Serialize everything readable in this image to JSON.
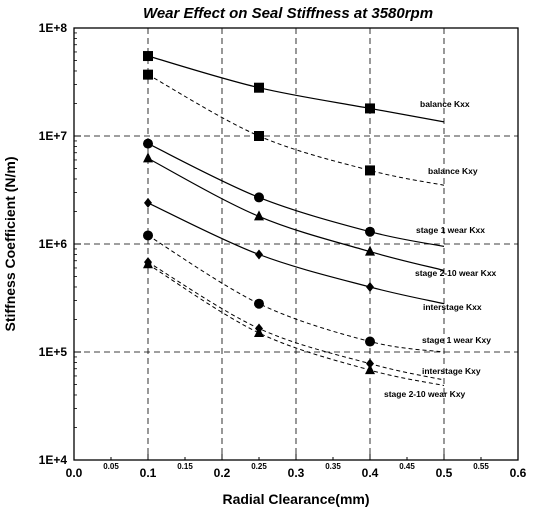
{
  "chart_data": {
    "type": "line",
    "title": "Wear Effect on Seal Stiffness at 3580rpm",
    "xlabel": "Radial Clearance(mm)",
    "ylabel": "Stiffness Coefficient (N/m)",
    "xlim": [
      0.0,
      0.6
    ],
    "ylim": [
      10000,
      100000000
    ],
    "yscale": "log",
    "grid": "dashed",
    "x_ticks": [
      {
        "value": 0.0,
        "label": "0.0",
        "major": true
      },
      {
        "value": 0.05,
        "label": "0.05",
        "major": false
      },
      {
        "value": 0.1,
        "label": "0.1",
        "major": true
      },
      {
        "value": 0.15,
        "label": "0.15",
        "major": false
      },
      {
        "value": 0.2,
        "label": "0.2",
        "major": true
      },
      {
        "value": 0.25,
        "label": "0.25",
        "major": false
      },
      {
        "value": 0.3,
        "label": "0.3",
        "major": true
      },
      {
        "value": 0.35,
        "label": "0.35",
        "major": false
      },
      {
        "value": 0.4,
        "label": "0.4",
        "major": true
      },
      {
        "value": 0.45,
        "label": "0.45",
        "major": false
      },
      {
        "value": 0.5,
        "label": "0.5",
        "major": true
      },
      {
        "value": 0.55,
        "label": "0.55",
        "major": false
      },
      {
        "value": 0.6,
        "label": "0.6",
        "major": true
      }
    ],
    "y_ticks": [
      {
        "value": 10000,
        "label": "1E+4"
      },
      {
        "value": 100000,
        "label": "1E+5"
      },
      {
        "value": 1000000,
        "label": "1E+6"
      },
      {
        "value": 10000000,
        "label": "1E+7"
      },
      {
        "value": 100000000,
        "label": "1E+8"
      }
    ],
    "series": [
      {
        "name": "balance Kxx",
        "marker": "square",
        "line": "solid",
        "points": [
          [
            0.1,
            55000000
          ],
          [
            0.25,
            28000000
          ],
          [
            0.4,
            18000000
          ]
        ],
        "curve": [
          [
            0.1,
            55000000
          ],
          [
            0.25,
            28000000
          ],
          [
            0.4,
            18000000
          ],
          [
            0.5,
            13500000
          ]
        ]
      },
      {
        "name": "balance Kxy",
        "marker": "square",
        "line": "dashed",
        "points": [
          [
            0.1,
            37000000
          ],
          [
            0.25,
            10000000
          ],
          [
            0.4,
            4800000
          ]
        ],
        "curve": [
          [
            0.1,
            37000000
          ],
          [
            0.25,
            10000000
          ],
          [
            0.4,
            4800000
          ],
          [
            0.5,
            3500000
          ]
        ]
      },
      {
        "name": "stage 1 wear Kxx",
        "marker": "circle",
        "line": "solid",
        "points": [
          [
            0.1,
            8500000
          ],
          [
            0.25,
            2700000
          ],
          [
            0.4,
            1300000
          ]
        ],
        "curve": [
          [
            0.1,
            8500000
          ],
          [
            0.25,
            2700000
          ],
          [
            0.4,
            1300000
          ],
          [
            0.5,
            950000
          ]
        ]
      },
      {
        "name": "stage 2-10 wear Kxx",
        "marker": "triangle",
        "line": "solid",
        "points": [
          [
            0.1,
            6200000
          ],
          [
            0.25,
            1800000
          ],
          [
            0.4,
            850000
          ]
        ],
        "curve": [
          [
            0.1,
            6200000
          ],
          [
            0.25,
            1800000
          ],
          [
            0.4,
            850000
          ],
          [
            0.5,
            570000
          ]
        ]
      },
      {
        "name": "interstage Kxx",
        "marker": "diamond",
        "line": "solid",
        "points": [
          [
            0.1,
            2400000
          ],
          [
            0.25,
            800000
          ],
          [
            0.4,
            400000
          ]
        ],
        "curve": [
          [
            0.1,
            2400000
          ],
          [
            0.25,
            800000
          ],
          [
            0.4,
            400000
          ],
          [
            0.5,
            280000
          ]
        ]
      },
      {
        "name": "stage 1 wear Kxy",
        "marker": "circle",
        "line": "dashed",
        "points": [
          [
            0.1,
            1200000
          ],
          [
            0.25,
            280000
          ],
          [
            0.4,
            125000
          ]
        ],
        "curve": [
          [
            0.1,
            1200000
          ],
          [
            0.25,
            280000
          ],
          [
            0.4,
            125000
          ],
          [
            0.5,
            100000
          ]
        ]
      },
      {
        "name": "interstage Kxy",
        "marker": "diamond",
        "line": "dashed",
        "points": [
          [
            0.1,
            680000
          ],
          [
            0.25,
            165000
          ],
          [
            0.4,
            78000
          ]
        ],
        "curve": [
          [
            0.1,
            680000
          ],
          [
            0.25,
            165000
          ],
          [
            0.4,
            78000
          ],
          [
            0.5,
            55000
          ]
        ]
      },
      {
        "name": "stage 2-10 wear Kxy",
        "marker": "triangle",
        "line": "dashed",
        "points": [
          [
            0.1,
            650000
          ],
          [
            0.25,
            150000
          ],
          [
            0.4,
            68000
          ]
        ],
        "curve": [
          [
            0.1,
            650000
          ],
          [
            0.25,
            150000
          ],
          [
            0.4,
            68000
          ],
          [
            0.5,
            49000
          ]
        ]
      }
    ]
  }
}
